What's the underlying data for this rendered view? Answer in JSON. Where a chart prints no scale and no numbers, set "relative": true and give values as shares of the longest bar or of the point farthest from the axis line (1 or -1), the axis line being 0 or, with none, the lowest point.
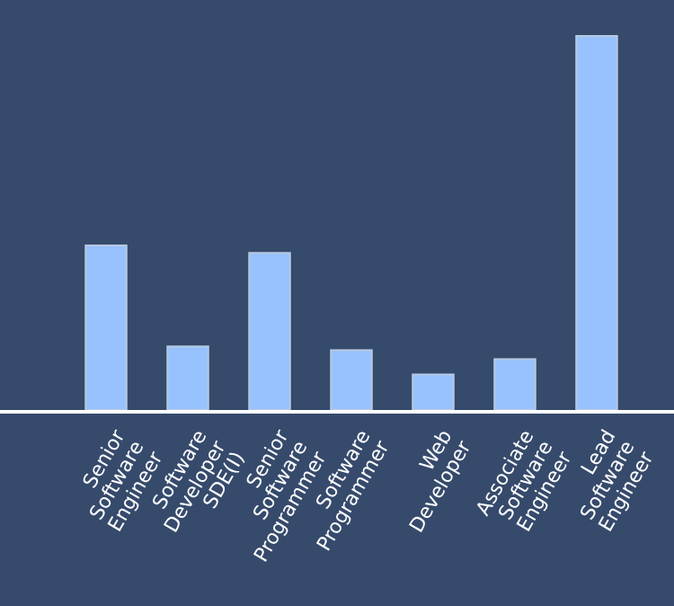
{
  "chart_data": {
    "type": "bar",
    "relative": true,
    "categories": [
      "Senior Software Engineer",
      "Software Developer SDE(I)",
      "Senior Software Programmer",
      "Software Programmer",
      "Web Developer",
      "Associate Software Engineer",
      "Lead Software Engineer"
    ],
    "values": [
      0.44,
      0.17,
      0.42,
      0.16,
      0.095,
      0.136,
      1
    ],
    "color": "#97c2fd"
  }
}
